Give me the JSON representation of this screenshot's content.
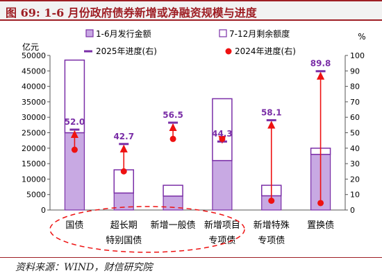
{
  "figure": {
    "title": "图 69:  1-6 月份政府债券新增或净融资规模与进度",
    "source": "资料来源：WIND，财信研究院"
  },
  "colors": {
    "title": "#9e1e24",
    "bar_fill": "#c8a9e3",
    "bar_stroke": "#7a2ea7",
    "progress_2025": "#7a2ea7",
    "progress_2024": "#ee1111",
    "arrow": "#ee1111",
    "annotation_ellipse": "#ee1111"
  },
  "chart_data": {
    "type": "bar",
    "categories": [
      [
        "国债"
      ],
      [
        "超长期",
        "特别国债"
      ],
      [
        "新增一般债"
      ],
      [
        "新增项目",
        "专项债"
      ],
      [
        "新增特殊",
        "专项债"
      ],
      [
        "置换债"
      ]
    ],
    "series": [
      {
        "name": "1-6月发行金额",
        "values": [
          25000,
          5500,
          4500,
          16000,
          4600,
          18000
        ]
      },
      {
        "name": "7-12月剩余额度",
        "values": [
          23500,
          7500,
          3500,
          20000,
          3400,
          2000
        ]
      },
      {
        "name": "2025年进度(右)",
        "values": [
          52.0,
          42.7,
          56.5,
          44.3,
          58.1,
          89.8
        ],
        "labels": [
          "52.0",
          "42.7",
          "56.5",
          "44.3",
          "58.1",
          "89.8"
        ]
      },
      {
        "name": "2024年进度(右)",
        "values": [
          39,
          25,
          46,
          46,
          6,
          4.5
        ]
      }
    ],
    "y_left": {
      "label": "亿元",
      "min": 0,
      "max": 50000,
      "ticks": [
        "0",
        "5000",
        "10000",
        "15000",
        "20000",
        "25000",
        "30000",
        "35000",
        "40000",
        "45000",
        "50000"
      ]
    },
    "y_right": {
      "label": "%",
      "min": 0,
      "max": 100,
      "ticks": [
        "0",
        "10",
        "20",
        "30",
        "40",
        "50",
        "60",
        "70",
        "80",
        "90",
        "100"
      ]
    },
    "legend_position": "top",
    "grid": false
  }
}
